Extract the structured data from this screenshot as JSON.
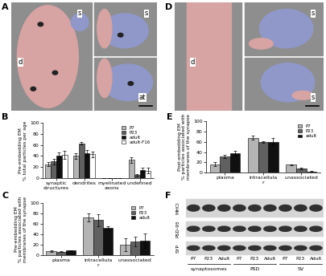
{
  "images": [
    {
      "label": "A",
      "texts": [
        "d",
        "s",
        "s",
        "at"
      ]
    },
    {
      "label": "D",
      "texts": [
        "d",
        "s",
        "s"
      ]
    }
  ],
  "chart_labels": [
    "B",
    "C",
    "E"
  ],
  "chart_data": [
    {
      "type": "bar",
      "ylabel": "Pre-embedding EM\n% total particles per age",
      "categories": [
        "synaptic structures",
        "dendrites",
        "myelinated axons",
        "undefined"
      ],
      "ylim": [
        0,
        100
      ],
      "yticks": [
        0,
        20,
        40,
        60,
        80,
        100
      ],
      "legend": "upper right",
      "series": [
        {
          "name": "P7",
          "color": "#b4b4b4",
          "values": [
            25,
            40,
            0,
            33
          ],
          "errors": [
            4,
            5,
            0,
            5
          ]
        },
        {
          "name": "P23",
          "color": "#606060",
          "values": [
            30,
            63,
            0,
            5
          ],
          "errors": [
            5,
            2,
            0,
            2
          ]
        },
        {
          "name": "adult",
          "color": "#101010",
          "values": [
            40,
            45,
            0.5,
            15
          ],
          "errors": [
            6,
            5,
            0,
            3
          ]
        },
        {
          "name": "adult-F16",
          "color": "#ffffff",
          "values": [
            42,
            43,
            0,
            13
          ],
          "errors": [
            7,
            5,
            0,
            5
          ]
        }
      ]
    },
    {
      "type": "bar",
      "ylabel": "Pre-embedding EM\n% particles associated with\nmembranes of the synapse",
      "categories": [
        "plasma",
        "intracellular",
        "unassociated"
      ],
      "ylim": [
        0,
        100
      ],
      "yticks": [
        0,
        20,
        40,
        60,
        80,
        100
      ],
      "legend": "upper right",
      "series": [
        {
          "name": "P7",
          "color": "#b4b4b4",
          "values": [
            8,
            72,
            20
          ],
          "errors": [
            1,
            8,
            12
          ]
        },
        {
          "name": "P23",
          "color": "#606060",
          "values": [
            7,
            67,
            26
          ],
          "errors": [
            1,
            12,
            9
          ]
        },
        {
          "name": "adult",
          "color": "#101010",
          "values": [
            9,
            52,
            28
          ],
          "errors": [
            1,
            3,
            14
          ]
        }
      ]
    },
    {
      "type": "bar",
      "ylabel": "Post-embedding EM\n% particles associated with\nmembranes of the synapse",
      "categories": [
        "plasma",
        "intracellular",
        "unassociated"
      ],
      "ylim": [
        0,
        100
      ],
      "yticks": [
        0,
        20,
        40,
        60,
        80,
        100
      ],
      "legend": "upper right",
      "series": [
        {
          "name": "P7",
          "color": "#b4b4b4",
          "values": [
            16,
            68,
            15
          ],
          "errors": [
            4,
            4,
            1
          ]
        },
        {
          "name": "P23",
          "color": "#606060",
          "values": [
            32,
            60,
            8
          ],
          "errors": [
            3,
            2,
            1
          ]
        },
        {
          "name": "adult",
          "color": "#101010",
          "values": [
            38,
            60,
            2
          ],
          "errors": [
            5,
            7,
            1
          ]
        }
      ]
    }
  ],
  "blot": {
    "label": "F",
    "rows": [
      "MHCI",
      "PSD-95",
      "SYP"
    ],
    "lanes": [
      "P7",
      "P23",
      "Adult",
      "P7",
      "P23",
      "Adult",
      "P7",
      "P23",
      "Adult"
    ],
    "groups": [
      "synaptosomes",
      "PSD",
      "SV"
    ]
  }
}
